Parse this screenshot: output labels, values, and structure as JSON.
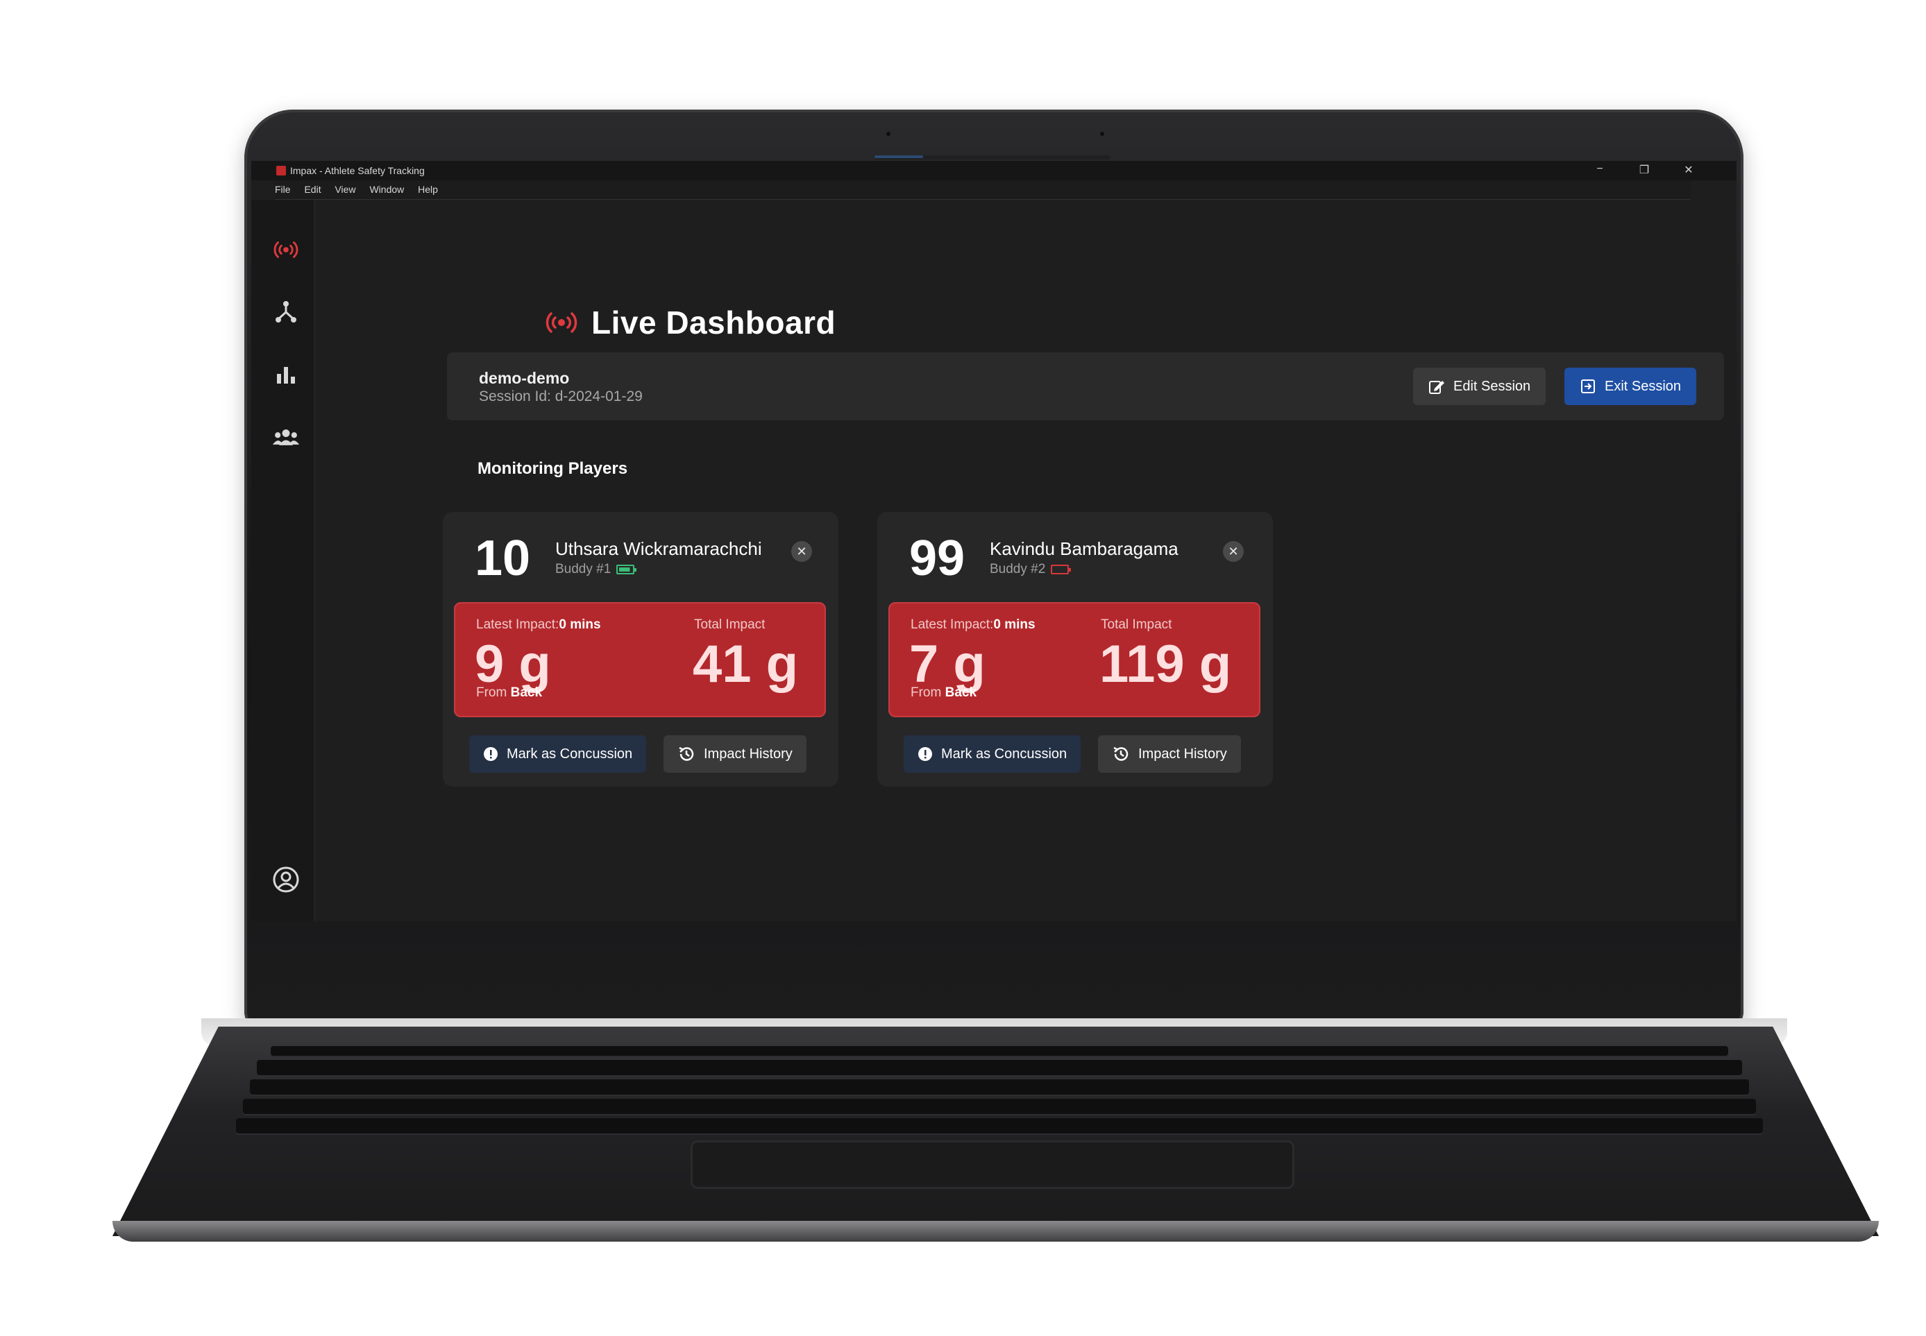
{
  "window": {
    "title": "Impax - Athlete Safety Tracking",
    "controls": [
      "−",
      "❐",
      "✕"
    ]
  },
  "menu": [
    "File",
    "Edit",
    "View",
    "Window",
    "Help"
  ],
  "sidebar": {
    "items": [
      {
        "name": "live",
        "icon": "broadcast-icon",
        "active": true,
        "color": "#e0393e"
      },
      {
        "name": "network",
        "icon": "network-icon"
      },
      {
        "name": "analytics",
        "icon": "bar-chart-icon"
      },
      {
        "name": "players",
        "icon": "users-icon"
      }
    ],
    "footer_icon": "user-circle-icon"
  },
  "page": {
    "title": "Live Dashboard",
    "accent": "#e0393e"
  },
  "session": {
    "name": "demo-demo",
    "id_text": "Session Id: d-2024-01-29",
    "edit_label": "Edit Session",
    "exit_label": "Exit Session"
  },
  "monitoring": {
    "title": "Monitoring Players",
    "players": [
      {
        "number": "10",
        "name": "Uthsara Wickramarachchi",
        "buddy": "Buddy #1",
        "battery": "full",
        "latest_label": "Latest Impact:",
        "latest_time": "0 mins",
        "latest_value": "9 g",
        "total_label": "Total Impact",
        "total_value": "41 g",
        "from_label": "From",
        "from_value": "Back",
        "concussion_label": "Mark as Concussion",
        "history_label": "Impact History"
      },
      {
        "number": "99",
        "name": "Kavindu Bambaragama",
        "buddy": "Buddy #2",
        "battery": "low",
        "latest_label": "Latest Impact:",
        "latest_time": "0 mins",
        "latest_value": "7 g",
        "total_label": "Total Impact",
        "total_value": "119 g",
        "from_label": "From",
        "from_value": "Back",
        "concussion_label": "Mark as Concussion",
        "history_label": "Impact History"
      }
    ]
  },
  "colors": {
    "impact_red": "#b3282d",
    "exit_blue": "#1e4fa3",
    "battery_full": "#3bbf78",
    "battery_low": "#d9373c"
  }
}
